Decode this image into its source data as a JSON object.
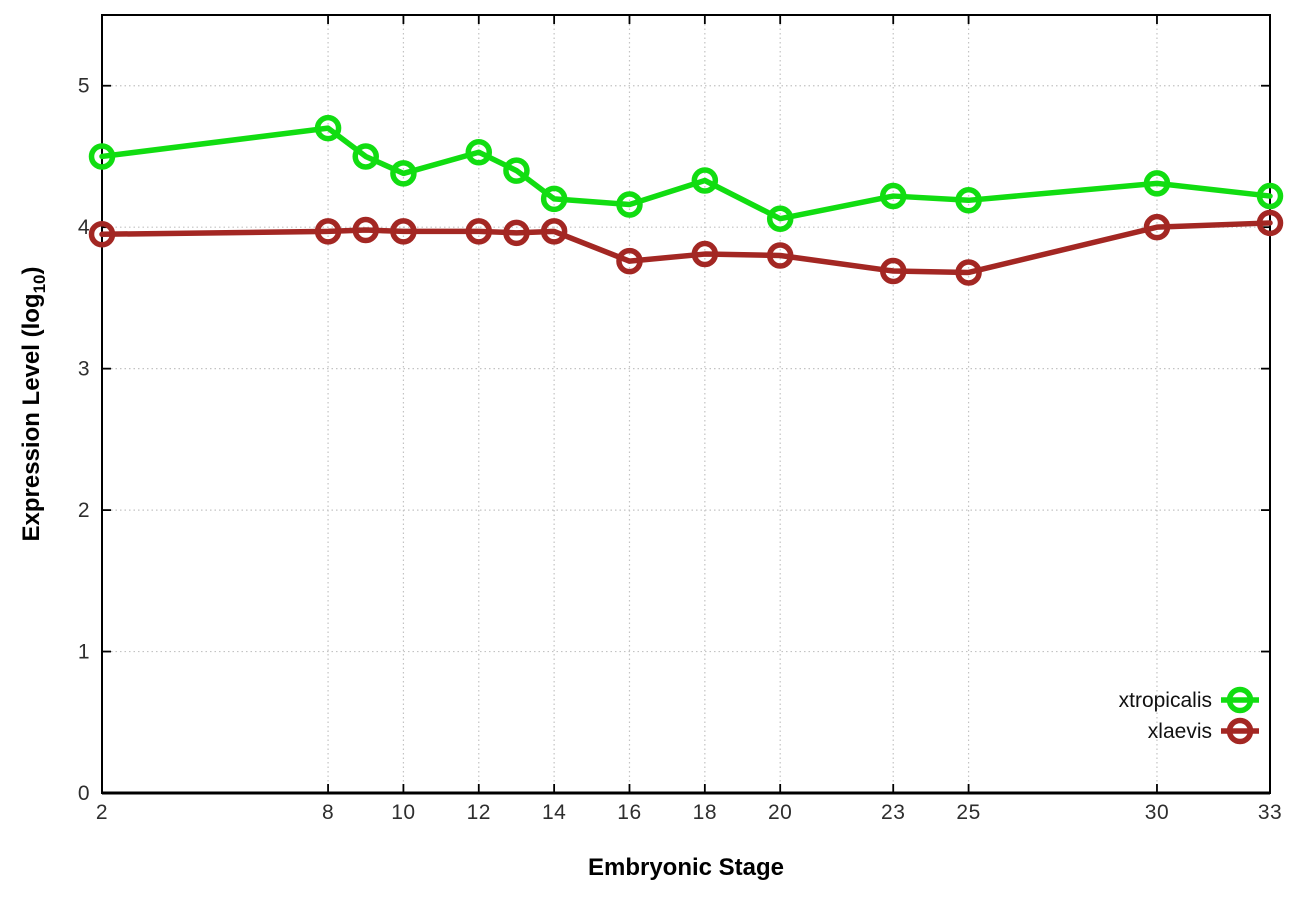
{
  "chart_data": {
    "type": "line",
    "title": "",
    "xlabel": "Embryonic Stage",
    "ylabel": {
      "text": "Expression Level (log",
      "subscript": "10",
      "suffix": ")"
    },
    "x": [
      2,
      8,
      9,
      10,
      12,
      13,
      14,
      16,
      18,
      20,
      23,
      25,
      30,
      33
    ],
    "x_ticks": [
      2,
      8,
      10,
      12,
      14,
      16,
      18,
      20,
      23,
      25,
      30,
      33
    ],
    "y_ticks": [
      0,
      1,
      2,
      3,
      4,
      5
    ],
    "xlim": [
      2,
      33
    ],
    "ylim": [
      0,
      5.5
    ],
    "grid": true,
    "marker": "open-circle",
    "axis_color": "#000000",
    "grid_color": "#c3c3c3",
    "legend": {
      "position": "inside-bottom-right",
      "entries": [
        "xtropicalis",
        "xlaevis"
      ]
    },
    "series": [
      {
        "name": "xtropicalis",
        "color": "#11dd11",
        "values": [
          4.5,
          4.7,
          4.5,
          4.38,
          4.53,
          4.4,
          4.2,
          4.16,
          4.33,
          4.06,
          4.22,
          4.19,
          4.31,
          4.22
        ]
      },
      {
        "name": "xlaevis",
        "color": "#a32723",
        "values": [
          3.95,
          3.97,
          3.98,
          3.97,
          3.97,
          3.96,
          3.97,
          3.76,
          3.81,
          3.8,
          3.69,
          3.68,
          4.0,
          4.03
        ]
      }
    ]
  }
}
